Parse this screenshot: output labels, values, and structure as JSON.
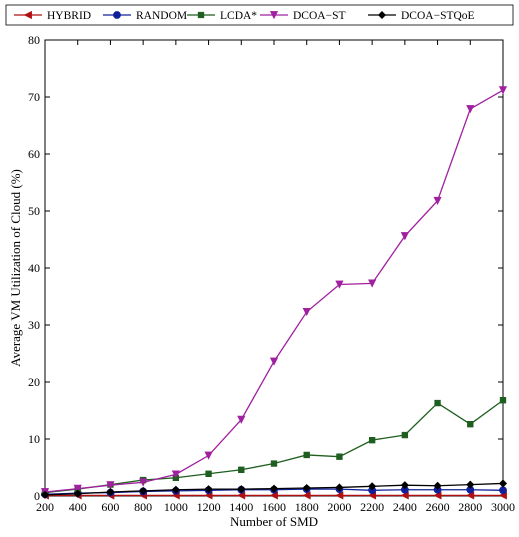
{
  "chart_data": {
    "type": "line",
    "title": "",
    "xlabel": "Number of SMD",
    "ylabel": "Average VM Utilization of Cloud (%)",
    "xlim": [
      200,
      3000
    ],
    "ylim": [
      0,
      80
    ],
    "xticks": [
      200,
      400,
      600,
      800,
      1000,
      1200,
      1400,
      1600,
      1800,
      2000,
      2200,
      2400,
      2600,
      2800,
      3000
    ],
    "yticks": [
      0,
      10,
      20,
      30,
      40,
      50,
      60,
      70,
      80
    ],
    "grid": false,
    "legend_position": "top (horizontal, above plot)",
    "x": [
      200,
      400,
      600,
      800,
      1000,
      1200,
      1400,
      1600,
      1800,
      2000,
      2200,
      2400,
      2600,
      2800,
      3000
    ],
    "series": [
      {
        "name": "HYBRID",
        "color": "#b01010",
        "marker": "triangle-left",
        "values": [
          0.1,
          0.1,
          0.1,
          0.1,
          0.1,
          0.1,
          0.1,
          0.1,
          0.1,
          0.1,
          0.1,
          0.1,
          0.1,
          0.1,
          0.1
        ]
      },
      {
        "name": "RANDOM",
        "color": "#10209a",
        "marker": "circle",
        "values": [
          0.3,
          0.5,
          0.6,
          0.8,
          0.9,
          1.0,
          1.1,
          1.1,
          1.2,
          1.2,
          1.0,
          1.1,
          1.1,
          1.1,
          1.0
        ]
      },
      {
        "name": "LCDA*",
        "color": "#1e5e1e",
        "marker": "square",
        "values": [
          0.6,
          1.2,
          2.0,
          2.8,
          3.2,
          3.9,
          4.6,
          5.7,
          7.2,
          6.9,
          9.8,
          10.7,
          16.3,
          12.6,
          16.8
        ]
      },
      {
        "name": "DCOA−ST",
        "color": "#a020a0",
        "marker": "triangle-down",
        "values": [
          0.7,
          1.3,
          1.9,
          2.4,
          3.8,
          7.1,
          13.4,
          23.6,
          32.3,
          37.1,
          37.3,
          45.6,
          51.8,
          67.9,
          71.2
        ]
      },
      {
        "name": "DCOA−STQoE",
        "color": "#000000",
        "marker": "diamond",
        "values": [
          0.2,
          0.4,
          0.7,
          0.9,
          1.1,
          1.2,
          1.2,
          1.3,
          1.4,
          1.5,
          1.7,
          1.9,
          1.8,
          2.0,
          2.2
        ]
      }
    ]
  }
}
